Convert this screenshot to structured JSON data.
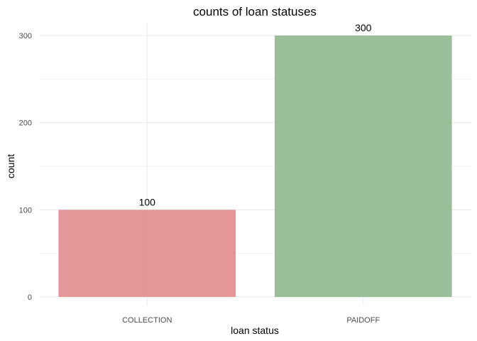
{
  "chart_data": {
    "type": "bar",
    "title": "counts of loan statuses",
    "xlabel": "loan status",
    "ylabel": "count",
    "categories": [
      "COLLECTION",
      "PAIDOFF"
    ],
    "values": [
      100,
      300
    ],
    "value_labels": [
      "100",
      "300"
    ],
    "ylim": [
      0,
      300
    ],
    "yticks": [
      0,
      100,
      200,
      300
    ],
    "ytick_labels": [
      "0",
      "100",
      "200",
      "300"
    ],
    "grid": true,
    "legend": "none",
    "colors": [
      "#e28b8b",
      "#8fb88d"
    ]
  }
}
